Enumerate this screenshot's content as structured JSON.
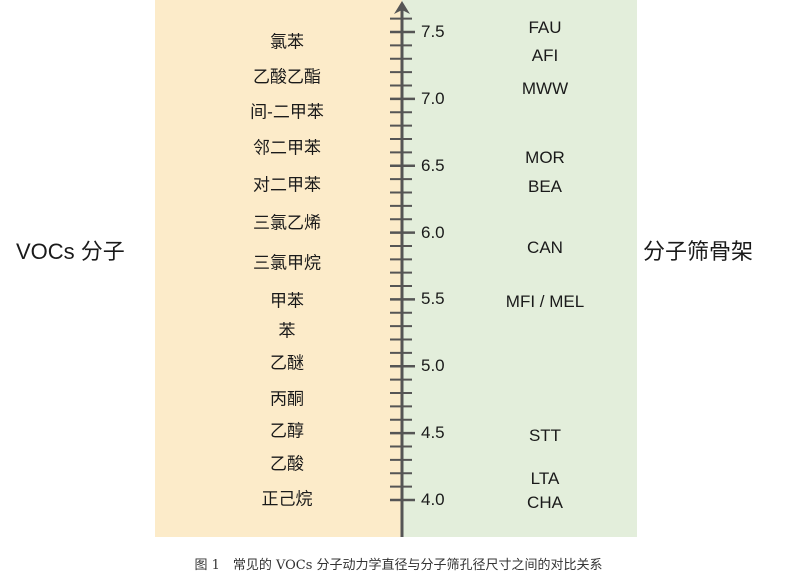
{
  "left_title": "VOCs 分子",
  "right_title": "分子筛骨架",
  "axis": {
    "min": 4.0,
    "max": 7.5,
    "major_step": 0.5,
    "minor_step": 0.1,
    "tick_labels": [
      "7.5",
      "7.0",
      "6.5",
      "6.0",
      "5.5",
      "5.0",
      "4.5",
      "4.0"
    ]
  },
  "vocs": [
    "氯苯",
    "乙酸乙酯",
    "间-二甲苯",
    "邻二甲苯",
    "对二甲苯",
    "三氯乙烯",
    "三氯甲烷",
    "甲苯",
    "苯",
    "乙醚",
    "丙酮",
    "乙醇",
    "乙酸",
    "正己烷"
  ],
  "zeolites": [
    "FAU",
    "AFI",
    "MWW",
    "MOR",
    "BEA",
    "CAN",
    "MFI / MEL",
    "STT",
    "LTA",
    "CHA"
  ],
  "colors": {
    "left_panel": "#fcebc9",
    "right_panel": "#e3eedb",
    "axis": "#555555"
  },
  "caption": "图 1　常见的 VOCs 分子动力学直径与分子筛孔径尺寸之间的对比关系"
}
